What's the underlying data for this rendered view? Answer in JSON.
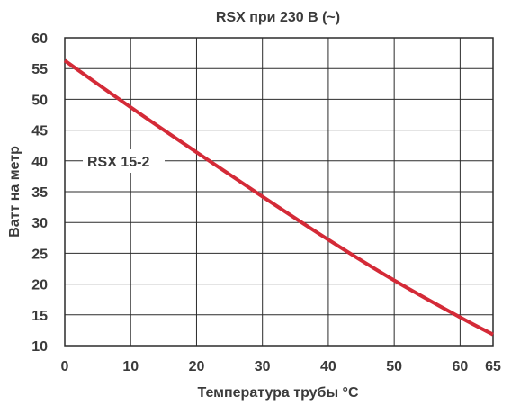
{
  "chart_data": {
    "type": "line",
    "title": "RSX при 230 В (~)",
    "xlabel": "Температура трубы °C",
    "ylabel": "Ватт на метр",
    "x_ticks": [
      0,
      10,
      20,
      30,
      40,
      50,
      60,
      65
    ],
    "y_ticks": [
      10,
      15,
      20,
      25,
      30,
      35,
      40,
      45,
      50,
      55,
      60
    ],
    "xlim": [
      0,
      65
    ],
    "ylim": [
      10,
      60
    ],
    "grid": true,
    "series": [
      {
        "name": "RSX 15-2",
        "color": "#d42a37",
        "x": [
          0,
          10,
          20,
          30,
          40,
          50,
          60,
          65
        ],
        "y": [
          56.3,
          48.7,
          41.4,
          34.2,
          27.2,
          20.6,
          14.6,
          11.8
        ]
      }
    ],
    "annotations": [
      {
        "text": "RSX 15-2",
        "anchor": "left-middle"
      }
    ]
  }
}
